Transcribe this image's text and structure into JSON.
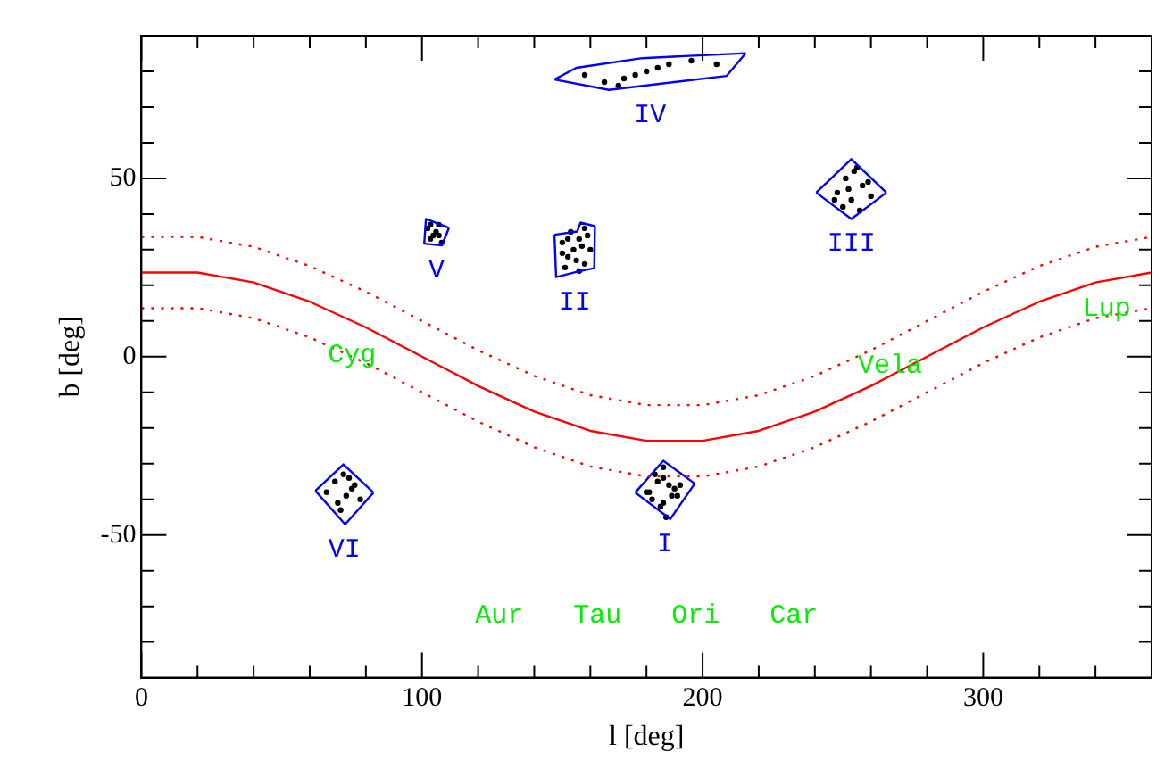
{
  "chart_data": {
    "type": "scatter",
    "xlabel": "l [deg]",
    "ylabel": "b [deg]",
    "xlim": [
      0,
      360
    ],
    "ylim": [
      -90,
      90
    ],
    "xticks": [
      0,
      {
        "value": 20,
        "label": null
      },
      {
        "value": 40,
        "label": null
      },
      {
        "value": 60,
        "label": null
      },
      {
        "value": 80,
        "label": null
      },
      100,
      {
        "value": 120,
        "label": null
      },
      {
        "value": 140,
        "label": null
      },
      {
        "value": 160,
        "label": null
      },
      {
        "value": 180,
        "label": null
      },
      200,
      {
        "value": 220,
        "label": null
      },
      {
        "value": 240,
        "label": null
      },
      {
        "value": 260,
        "label": null
      },
      {
        "value": 280,
        "label": null
      },
      300,
      {
        "value": 320,
        "label": null
      },
      {
        "value": 340,
        "label": null
      }
    ],
    "yticks": [
      {
        "value": -80,
        "label": null
      },
      {
        "value": -70,
        "label": null
      },
      {
        "value": -60,
        "label": null
      },
      -50,
      {
        "value": -40,
        "label": null
      },
      {
        "value": -30,
        "label": null
      },
      {
        "value": -20,
        "label": null
      },
      {
        "value": -10,
        "label": null
      },
      0,
      {
        "value": 10,
        "label": null
      },
      {
        "value": 20,
        "label": null
      },
      {
        "value": 30,
        "label": null
      },
      {
        "value": 40,
        "label": null
      },
      50,
      {
        "value": 60,
        "label": null
      },
      {
        "value": 70,
        "label": null
      },
      {
        "value": 80,
        "label": null
      }
    ],
    "grid": false,
    "legend": false,
    "series": [
      {
        "type": "line",
        "color": "#ff0000",
        "line_style": "solid",
        "marker": "none",
        "x": [
          0,
          20,
          40,
          60,
          80,
          100,
          120,
          140,
          160,
          180,
          200,
          220,
          240,
          260,
          280,
          300,
          320,
          340,
          360
        ],
        "values": [
          23.6,
          23.6,
          20.8,
          15.4,
          8.2,
          0,
          -8.2,
          -15.4,
          -20.8,
          -23.6,
          -23.6,
          -20.8,
          -15.4,
          -8.2,
          0,
          8.2,
          15.4,
          20.8,
          23.6
        ]
      },
      {
        "type": "line",
        "color": "#ff0000",
        "line_style": "dotted",
        "marker": "none",
        "x": [
          0,
          20,
          40,
          60,
          80,
          100,
          120,
          140,
          160,
          180,
          200,
          220,
          240,
          260,
          280,
          300,
          320,
          340,
          360
        ],
        "values": [
          33.6,
          33.6,
          30.8,
          25.4,
          18.2,
          10,
          1.8,
          -5.4,
          -10.8,
          -13.6,
          -13.6,
          -10.8,
          -5.4,
          1.8,
          10,
          18.2,
          25.4,
          30.8,
          33.6
        ]
      },
      {
        "type": "line",
        "color": "#ff0000",
        "line_style": "dotted",
        "marker": "none",
        "x": [
          0,
          20,
          40,
          60,
          80,
          100,
          120,
          140,
          160,
          180,
          200,
          220,
          240,
          260,
          280,
          300,
          320,
          340,
          360
        ],
        "values": [
          13.6,
          13.6,
          10.8,
          5.4,
          -1.8,
          -10,
          -18.2,
          -25.4,
          -30.8,
          -33.6,
          -33.6,
          -30.8,
          -25.4,
          -18.2,
          -10,
          -1.8,
          5.4,
          10.8,
          13.6
        ]
      },
      {
        "type": "line",
        "name": "I",
        "color": "#0000ff",
        "line_style": "solid",
        "marker": "none",
        "x": [
          176,
          186,
          197.2
        ],
        "values": [
          -38.1,
          -29.2,
          -35.6
        ]
      },
      {
        "type": "line",
        "color": "#0000ff",
        "line_style": "solid",
        "marker": "none",
        "x": [
          176,
          188.5,
          197.2
        ],
        "values": [
          -38.1,
          -45.5,
          -35.6
        ]
      },
      {
        "type": "line",
        "name": "II",
        "color": "#0000ff",
        "line_style": "solid",
        "marker": "none",
        "x": [
          147.2,
          155.3,
          156.5,
          161.6
        ],
        "values": [
          34.2,
          35.1,
          37.6,
          36.6
        ]
      },
      {
        "type": "line",
        "color": "#0000ff",
        "line_style": "solid",
        "marker": "none",
        "x": [
          147.2,
          147.8,
          155.3,
          161.4,
          161.6
        ],
        "values": [
          34.2,
          22.3,
          23.8,
          24.8,
          36.6
        ]
      },
      {
        "type": "line",
        "name": "III",
        "color": "#0000ff",
        "line_style": "solid",
        "marker": "none",
        "x": [
          240.5,
          253,
          265.5
        ],
        "values": [
          46,
          55.4,
          46
        ]
      },
      {
        "type": "line",
        "color": "#0000ff",
        "line_style": "solid",
        "marker": "none",
        "x": [
          240.5,
          253,
          265.5
        ],
        "values": [
          46,
          38.6,
          46
        ]
      },
      {
        "type": "line",
        "name": "IV",
        "color": "#0000ff",
        "line_style": "solid",
        "marker": "none",
        "x": [
          147.2,
          155,
          178.5,
          215.4
        ],
        "values": [
          77.7,
          81,
          83.7,
          85.1
        ]
      },
      {
        "type": "line",
        "color": "#0000ff",
        "line_style": "solid",
        "marker": "none",
        "x": [
          147.2,
          166.6,
          208.5,
          215.4
        ],
        "values": [
          77.7,
          74.8,
          78.7,
          85.1
        ]
      },
      {
        "type": "line",
        "name": "V",
        "color": "#0000ff",
        "line_style": "solid",
        "marker": "none",
        "x": [
          100.8,
          101.4,
          109.6
        ],
        "values": [
          31.7,
          38.6,
          36.1
        ]
      },
      {
        "type": "line",
        "color": "#0000ff",
        "line_style": "solid",
        "marker": "none",
        "x": [
          100.8,
          107.1,
          109.6
        ],
        "values": [
          31.7,
          31.2,
          36.1
        ]
      },
      {
        "type": "line",
        "name": "VI",
        "color": "#0000ff",
        "line_style": "solid",
        "marker": "none",
        "x": [
          62,
          72,
          82.7
        ],
        "values": [
          -37.6,
          -30.2,
          -38.1
        ]
      },
      {
        "type": "line",
        "color": "#0000ff",
        "line_style": "solid",
        "marker": "none",
        "x": [
          62,
          72.6,
          82.7
        ],
        "values": [
          -37.6,
          -47,
          -38.1
        ]
      },
      {
        "type": "scatter",
        "color": "#000000",
        "marker": "circle",
        "x": [
          180,
          183,
          186,
          188,
          190,
          185,
          182,
          187,
          192,
          184,
          189,
          186,
          181,
          191,
          186,
          150,
          152,
          154,
          156,
          158,
          160,
          151,
          153,
          155,
          157,
          159,
          150,
          152,
          156,
          158,
          248,
          251,
          254,
          257,
          260,
          250,
          253,
          256,
          252,
          255,
          259,
          247,
          158,
          165,
          172,
          180,
          188,
          196,
          205,
          170,
          176,
          184,
          102,
          104,
          106,
          103,
          105,
          107,
          103,
          106,
          66,
          69,
          72,
          75,
          78,
          70,
          73,
          76,
          71,
          74
        ],
        "values": [
          -38,
          -33,
          -31,
          -36,
          -37,
          -42,
          -40,
          -45,
          -36,
          -35,
          -39,
          -41,
          -38,
          -39,
          -34,
          32,
          28,
          30,
          33,
          26,
          30,
          25,
          35,
          27,
          31,
          34,
          29,
          33,
          24,
          36,
          46,
          50,
          52,
          48,
          45,
          42,
          44,
          41,
          47,
          53,
          49,
          44,
          79,
          77,
          78,
          80,
          82,
          83,
          82,
          76,
          79,
          81,
          36,
          34,
          37,
          33,
          35,
          32,
          37,
          34,
          -38,
          -35,
          -33,
          -37,
          -40,
          -41,
          -39,
          -36,
          -43,
          -34
        ]
      }
    ],
    "annotations": [
      {
        "text": "Cyg",
        "x": 75,
        "y": 0.5
      },
      "Aur",
      "Tau",
      "Ori",
      {
        "text": "Vela",
        "x": 266.8,
        "y": -2.5
      },
      "Car",
      {
        "text": "Lup",
        "x": 344,
        "y": 13.4
      }
    ]
  }
}
